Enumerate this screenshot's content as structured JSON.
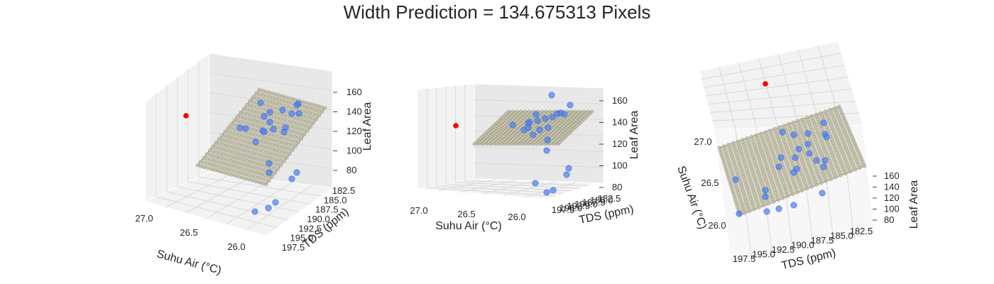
{
  "title": "Width Prediction = 134.675313 Pixels",
  "colors": {
    "background": "#ffffff",
    "pane": "#f2f2f2",
    "pane_dark": "#e8e8e8",
    "grid": "#d9d9d9",
    "surface": "#b8b59a",
    "surface_edge": "#7f7d6a",
    "observed": "#4c7ef3",
    "predicted": "#ff0000"
  },
  "chart_data": [
    {
      "type": "scatter3d",
      "view": "default",
      "xlabel": "Suhu Air (°C)",
      "ylabel": "TDS (ppm)",
      "zlabel": "Leaf Area",
      "xticks": [
        "27.0",
        "26.5",
        "26.0"
      ],
      "yticks": [
        "182.5",
        "185.0",
        "187.5",
        "190.0",
        "192.5",
        "195.0",
        "197.5"
      ],
      "zticks": [
        "80",
        "100",
        "120",
        "140",
        "160"
      ],
      "xlim": [
        25.9,
        27.1
      ],
      "ylim": [
        181,
        199
      ],
      "zlim": [
        75,
        165
      ],
      "surface": {
        "name": "fitted plane",
        "z_at_x_low_y_low": 128,
        "z_at_x_high_y_high": 110
      },
      "observed_points": [
        [
          26.1,
          182.5,
          148
        ],
        [
          26.2,
          184.0,
          142
        ],
        [
          26.3,
          183.0,
          145
        ],
        [
          26.0,
          186.0,
          150
        ],
        [
          26.4,
          185.5,
          140
        ],
        [
          26.5,
          184.5,
          138
        ],
        [
          26.6,
          186.5,
          136
        ],
        [
          26.3,
          188.0,
          132
        ],
        [
          26.2,
          189.5,
          128
        ],
        [
          26.7,
          187.5,
          130
        ],
        [
          26.8,
          186.0,
          134
        ],
        [
          26.5,
          190.5,
          124
        ],
        [
          26.1,
          191.0,
          122
        ],
        [
          26.4,
          192.5,
          118
        ],
        [
          26.9,
          189.0,
          126
        ],
        [
          26.6,
          193.5,
          112
        ],
        [
          26.3,
          195.5,
          96
        ],
        [
          26.0,
          194.0,
          104
        ],
        [
          26.2,
          197.0,
          88
        ],
        [
          26.5,
          196.5,
          84
        ],
        [
          26.8,
          193.0,
          108
        ],
        [
          26.1,
          188.5,
          138
        ],
        [
          26.7,
          191.5,
          116
        ],
        [
          26.4,
          187.0,
          135
        ]
      ],
      "predicted_point": [
        27.0,
        197.0,
        134.675313
      ]
    },
    {
      "type": "scatter3d",
      "view": "side",
      "xlabel": "Suhu Air (°C)",
      "ylabel": "TDS (ppm)",
      "zlabel": "Leaf Area",
      "xticks": [
        "27.0",
        "26.5",
        "26.0"
      ],
      "yticks": [
        "182.5",
        "185.0",
        "187.5",
        "190.0",
        "192.5",
        "195.0",
        "197.5"
      ],
      "zticks": [
        "80",
        "100",
        "120",
        "140",
        "160"
      ],
      "xlim": [
        25.9,
        27.1
      ],
      "ylim": [
        181,
        199
      ],
      "zlim": [
        75,
        165
      ]
    },
    {
      "type": "scatter3d",
      "view": "top",
      "xlabel": "Suhu Air (°C)",
      "ylabel": "TDS (ppm)",
      "zlabel": "Leaf Area",
      "xticks": [
        "27.0",
        "26.5",
        "26.0"
      ],
      "yticks": [
        "197.5",
        "195.0",
        "192.5",
        "190.0",
        "187.5",
        "185.0",
        "182.5"
      ],
      "zticks": [
        "80",
        "100",
        "120",
        "140",
        "160"
      ],
      "xlim": [
        25.9,
        27.1
      ],
      "ylim": [
        181,
        199
      ],
      "zlim": [
        75,
        165
      ]
    }
  ]
}
